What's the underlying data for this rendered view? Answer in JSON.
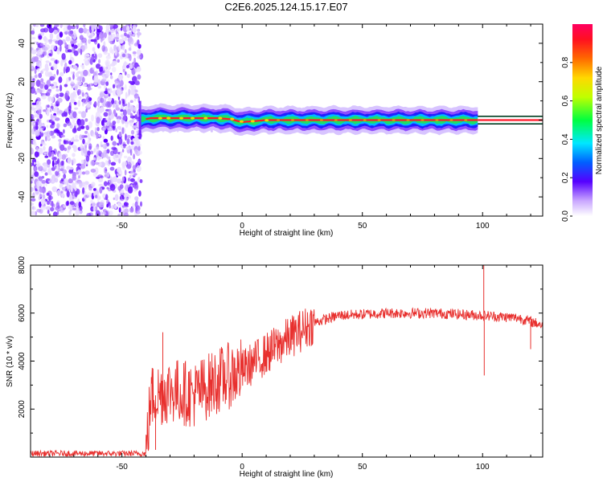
{
  "title": "C2E6.2025.124.15.17.E07",
  "chart_data": [
    {
      "type": "heatmap",
      "title": "C2E6.2025.124.15.17.E07",
      "xlabel": "Height of straight line (km)",
      "ylabel": "Frequency (Hz)",
      "xlim": [
        -88,
        125
      ],
      "ylim": [
        -50,
        50
      ],
      "x_ticks": [
        -50,
        0,
        50,
        100
      ],
      "y_ticks": [
        -40,
        -20,
        0,
        20,
        40
      ],
      "noise_region_x": [
        -88,
        -42
      ],
      "signal_track": [
        {
          "x": -42,
          "y": 0
        },
        {
          "x": -38,
          "y": 1
        },
        {
          "x": -30,
          "y": 1
        },
        {
          "x": -20,
          "y": 1
        },
        {
          "x": -10,
          "y": 1
        },
        {
          "x": -5,
          "y": 0.5
        },
        {
          "x": 0,
          "y": -1
        },
        {
          "x": 5,
          "y": -0.5
        },
        {
          "x": 10,
          "y": 0
        },
        {
          "x": 50,
          "y": 0
        },
        {
          "x": 100,
          "y": 0
        },
        {
          "x": 125,
          "y": 0
        }
      ],
      "colorbar": {
        "label": "Normalized spectral amplitude",
        "range": [
          0,
          1
        ],
        "ticks": [
          "0.0",
          "0.2",
          "0.4",
          "0.6",
          "0.8"
        ]
      }
    },
    {
      "type": "line",
      "xlabel": "Height of straight line (km)",
      "ylabel": "SNR (10 * v/v)",
      "xlim": [
        -88,
        125
      ],
      "ylim": [
        0,
        8000
      ],
      "x_ticks": [
        -50,
        0,
        50,
        100
      ],
      "y_ticks": [
        2000,
        4000,
        6000,
        8000
      ],
      "color": "#e8302e",
      "envelope": [
        {
          "x": -88,
          "y": 150
        },
        {
          "x": -60,
          "y": 150
        },
        {
          "x": -40,
          "y": 150
        },
        {
          "x": -38,
          "y": 2500
        },
        {
          "x": -30,
          "y": 2800
        },
        {
          "x": -20,
          "y": 2600
        },
        {
          "x": -10,
          "y": 3200
        },
        {
          "x": 0,
          "y": 3600
        },
        {
          "x": 10,
          "y": 4300
        },
        {
          "x": 20,
          "y": 5000
        },
        {
          "x": 30,
          "y": 5600
        },
        {
          "x": 40,
          "y": 5900
        },
        {
          "x": 60,
          "y": 6000
        },
        {
          "x": 80,
          "y": 6000
        },
        {
          "x": 100,
          "y": 5900
        },
        {
          "x": 115,
          "y": 5800
        },
        {
          "x": 125,
          "y": 5500
        }
      ],
      "spikes": [
        {
          "x": 100.5,
          "y": 8100
        },
        {
          "x": 100.7,
          "y": 3400
        },
        {
          "x": -33,
          "y": 5200
        },
        {
          "x": -36,
          "y": 300
        },
        {
          "x": 120,
          "y": 4500
        }
      ]
    }
  ]
}
